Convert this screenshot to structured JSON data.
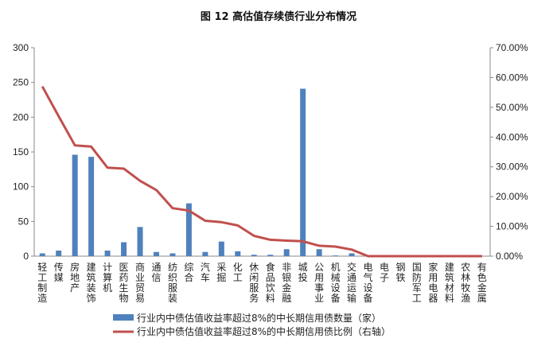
{
  "chart_data": {
    "type": "bar+line",
    "title": "图 12 高估值存续债行业分布情况",
    "categories": [
      "轻工制造",
      "传媒",
      "房地产",
      "建筑装饰",
      "计算机",
      "医药生物",
      "商业贸易",
      "通信",
      "纺织服装",
      "综合",
      "汽车",
      "采掘",
      "化工",
      "休闲服务",
      "食品饮料",
      "非银金融",
      "城投",
      "公用事业",
      "机械设备",
      "交通运输",
      "电气设备",
      "电子",
      "钢铁",
      "国防军工",
      "家用电器",
      "建筑材料",
      "农林牧渔",
      "有色金属"
    ],
    "series": [
      {
        "name": "行业内中债估值收益率超过8%的中长期信用债数量（家）",
        "type": "bar",
        "axis": "left",
        "color": "#4f81bd",
        "values": [
          4,
          8,
          146,
          143,
          8,
          20,
          42,
          6,
          4,
          76,
          6,
          21,
          7,
          2,
          2,
          10,
          241,
          10,
          1,
          4,
          1,
          0,
          0,
          0,
          0,
          0,
          0,
          0
        ]
      },
      {
        "name": "行业内中债估值收益率超过8%的中长期信用债比例（右轴）",
        "type": "line",
        "axis": "right",
        "color": "#c0504d",
        "values": [
          57.0,
          47.0,
          37.2,
          36.8,
          29.7,
          29.4,
          25.3,
          22.2,
          16.1,
          15.3,
          11.9,
          11.4,
          10.3,
          6.8,
          5.5,
          5.2,
          5.0,
          3.5,
          3.2,
          2.2,
          0,
          0,
          0,
          0,
          0,
          0,
          0,
          0
        ]
      }
    ],
    "left_axis": {
      "min": 0,
      "max": 300,
      "ticks": [
        "0",
        "50",
        "100",
        "150",
        "200",
        "250",
        "300"
      ]
    },
    "right_axis": {
      "min": 0,
      "max": 70,
      "ticks": [
        "0.00%",
        "10.00%",
        "20.00%",
        "30.00%",
        "40.00%",
        "50.00%",
        "60.00%",
        "70.00%"
      ]
    },
    "legend_position": "bottom",
    "grid": false
  }
}
